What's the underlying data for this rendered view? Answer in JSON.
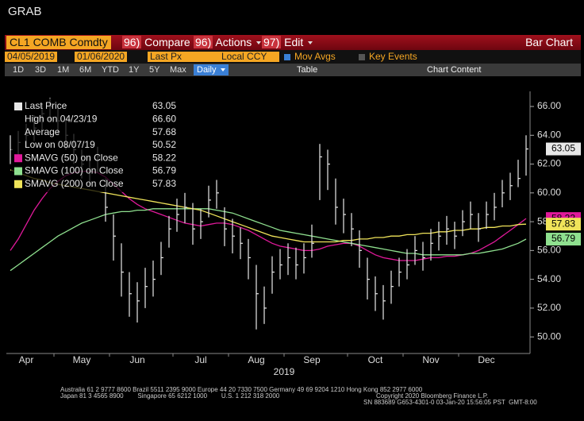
{
  "header": {
    "title": "GRAB"
  },
  "toolbar": {
    "security": "CL1 COMB Comdty",
    "menus": [
      {
        "code": "96)",
        "label": "Compare"
      },
      {
        "code": "96)",
        "label": "Actions"
      },
      {
        "code": "97)",
        "label": "Edit"
      }
    ],
    "view": "Bar Chart"
  },
  "settings": {
    "start": "04/05/2019",
    "end": "01/06/2020",
    "field": "Last Px",
    "currency": "Local CCY",
    "options": [
      "Mov Avgs",
      "Key Events"
    ]
  },
  "periods": [
    "1D",
    "3D",
    "1M",
    "6M",
    "YTD",
    "1Y",
    "5Y",
    "Max"
  ],
  "frequency": "Daily",
  "tabs": [
    "Table",
    "Chart Content"
  ],
  "chart_data": {
    "type": "hlc",
    "x_label": "2019",
    "categories": [
      null,
      null,
      "Apr",
      null,
      null,
      null,
      null,
      null,
      null,
      "May",
      null,
      null,
      null,
      null,
      null,
      null,
      "Jun",
      null,
      null,
      null,
      null,
      null,
      null,
      null,
      "Jul",
      null,
      null,
      null,
      null,
      null,
      null,
      "Aug",
      null,
      null,
      null,
      null,
      null,
      null,
      "Sep",
      null,
      null,
      null,
      null,
      null,
      null,
      null,
      "Oct",
      null,
      null,
      null,
      null,
      null,
      null,
      "Nov",
      null,
      null,
      null,
      null,
      null,
      null,
      "Dec",
      null,
      null,
      null,
      null,
      null
    ],
    "series": [
      {
        "name": "Last Price",
        "color": "#e8e8e8",
        "legend_value": "63.05",
        "values": [
          63.0,
          63.5,
          64.0,
          64.5,
          65.5,
          66.0,
          65.0,
          64.0,
          63.0,
          62.0,
          61.5,
          62.5,
          59.0,
          57.0,
          54.5,
          53.0,
          52.5,
          53.5,
          54.0,
          55.5,
          57.5,
          58.5,
          59.0,
          57.5,
          58.0,
          59.5,
          60.0,
          57.5,
          57.0,
          56.5,
          55.5,
          53.0,
          52.0,
          54.5,
          55.0,
          55.5,
          55.0,
          55.5,
          56.5,
          62.5,
          62.0,
          59.0,
          58.5,
          57.5,
          56.0,
          54.0,
          53.0,
          52.5,
          53.5,
          54.5,
          55.0,
          56.0,
          55.5,
          56.5,
          57.0,
          57.5,
          57.0,
          58.0,
          58.5,
          57.5,
          58.5,
          59.0,
          60.0,
          60.5,
          61.0,
          63.05
        ],
        "high": [
          64.0,
          64.3,
          64.8,
          65.4,
          66.2,
          66.6,
          66.0,
          65.0,
          64.1,
          63.0,
          62.6,
          63.2,
          61.0,
          58.5,
          56.5,
          54.5,
          53.8,
          54.8,
          55.3,
          56.6,
          58.4,
          59.6,
          60.0,
          59.3,
          58.9,
          60.5,
          60.9,
          59.0,
          58.2,
          57.6,
          56.8,
          55.0,
          53.5,
          55.6,
          56.1,
          56.5,
          56.2,
          56.5,
          57.8,
          63.4,
          63.0,
          61.0,
          59.6,
          58.6,
          57.4,
          55.5,
          54.2,
          53.6,
          54.6,
          55.5,
          56.1,
          57.0,
          56.6,
          57.5,
          58.0,
          58.4,
          58.0,
          58.8,
          59.4,
          58.6,
          59.4,
          60.0,
          60.9,
          61.4,
          62.3,
          64.0
        ],
        "low": [
          62.0,
          62.6,
          63.1,
          63.6,
          64.4,
          65.0,
          64.0,
          63.0,
          62.0,
          61.0,
          60.5,
          61.4,
          58.0,
          55.3,
          52.8,
          51.4,
          51.0,
          52.0,
          52.8,
          54.3,
          56.2,
          57.3,
          57.9,
          56.4,
          56.8,
          58.3,
          58.9,
          56.3,
          55.8,
          55.4,
          54.0,
          50.52,
          50.9,
          53.0,
          54.0,
          54.3,
          54.0,
          54.4,
          55.5,
          59.5,
          60.2,
          57.8,
          57.2,
          56.3,
          54.8,
          52.6,
          51.8,
          51.2,
          52.3,
          53.5,
          54.0,
          55.0,
          54.6,
          55.3,
          56.0,
          56.4,
          56.1,
          57.0,
          57.5,
          56.6,
          57.5,
          58.1,
          59.0,
          59.5,
          60.4,
          61.2
        ]
      },
      {
        "name": "SMAVG (50)  on Close",
        "color": "#e0199a",
        "legend_value": "58.22",
        "values": [
          56.0,
          56.8,
          57.8,
          58.8,
          59.6,
          60.3,
          60.8,
          61.2,
          61.4,
          61.5,
          61.5,
          61.4,
          61.1,
          60.6,
          60.1,
          59.6,
          59.2,
          58.9,
          58.7,
          58.5,
          58.3,
          58.1,
          57.9,
          57.8,
          57.7,
          57.8,
          57.9,
          57.9,
          57.8,
          57.6,
          57.4,
          57.1,
          56.8,
          56.5,
          56.3,
          56.2,
          56.1,
          56.0,
          56.0,
          56.1,
          56.3,
          56.4,
          56.5,
          56.5,
          56.3,
          56.0,
          55.7,
          55.5,
          55.4,
          55.3,
          55.3,
          55.3,
          55.4,
          55.5,
          55.5,
          55.6,
          55.6,
          55.7,
          55.8,
          56.0,
          56.3,
          56.6,
          57.0,
          57.4,
          57.8,
          58.22
        ]
      },
      {
        "name": "SMAVG (100)  on Close",
        "color": "#8fe08f",
        "legend_value": "56.79",
        "values": [
          54.6,
          55.0,
          55.4,
          55.8,
          56.2,
          56.6,
          57.0,
          57.3,
          57.6,
          57.9,
          58.1,
          58.3,
          58.5,
          58.6,
          58.7,
          58.7,
          58.8,
          58.8,
          58.9,
          58.9,
          58.9,
          58.9,
          58.9,
          58.9,
          58.9,
          58.9,
          58.8,
          58.7,
          58.6,
          58.4,
          58.2,
          58.0,
          57.8,
          57.6,
          57.4,
          57.3,
          57.2,
          57.1,
          57.0,
          56.9,
          56.8,
          56.7,
          56.6,
          56.5,
          56.4,
          56.3,
          56.2,
          56.1,
          56.0,
          55.9,
          55.8,
          55.8,
          55.7,
          55.7,
          55.7,
          55.7,
          55.7,
          55.7,
          55.8,
          55.8,
          55.9,
          56.0,
          56.1,
          56.3,
          56.5,
          56.79
        ]
      },
      {
        "name": "SMAVG (200)  on Close",
        "color": "#f0e45a",
        "legend_value": "57.83",
        "values": [
          61.6,
          61.4,
          61.2,
          61.0,
          60.9,
          60.7,
          60.6,
          60.5,
          60.4,
          60.3,
          60.2,
          60.1,
          60.0,
          59.9,
          59.8,
          59.7,
          59.6,
          59.5,
          59.4,
          59.3,
          59.2,
          59.1,
          59.0,
          58.9,
          58.8,
          58.6,
          58.4,
          58.2,
          58.0,
          57.8,
          57.6,
          57.4,
          57.2,
          57.0,
          56.9,
          56.8,
          56.7,
          56.6,
          56.6,
          56.6,
          56.6,
          56.6,
          56.7,
          56.7,
          56.8,
          56.8,
          56.9,
          56.9,
          57.0,
          57.0,
          57.1,
          57.1,
          57.2,
          57.2,
          57.3,
          57.3,
          57.4,
          57.4,
          57.5,
          57.5,
          57.6,
          57.6,
          57.7,
          57.7,
          57.8,
          57.83
        ]
      }
    ],
    "stats": [
      {
        "label": "High on 04/23/19",
        "value": "66.60"
      },
      {
        "label": "Average",
        "value": "57.68"
      },
      {
        "label": "Low on 08/07/19",
        "value": "50.52"
      }
    ],
    "ylim": [
      48.85,
      67.05
    ],
    "yticks": [
      {
        "value": 50,
        "label": "50.00"
      },
      {
        "value": 52,
        "label": "52.00"
      },
      {
        "value": 54,
        "label": "54.00"
      },
      {
        "value": 56,
        "label": "56.00"
      },
      {
        "value": 58,
        "label": "58.00"
      },
      {
        "value": 60,
        "label": "60.00"
      },
      {
        "value": 62,
        "label": "62.00"
      },
      {
        "value": 64,
        "label": "64.00"
      },
      {
        "value": 66,
        "label": "66.00"
      }
    ],
    "grid": false
  },
  "footer": {
    "line1": "Australia 61 2 9777 8600 Brazil 5511 2395 9000 Europe 44 20 7330 7500 Germany 49 69 9204 1210 Hong Kong 852 2977 6000",
    "line2_left": "Japan 81 3 4565 8900        Singapore 65 6212 1000        U.S. 1 212 318 2000",
    "line2_right": "Copyright 2020 Bloomberg Finance L.P.",
    "line3": "SN 883689 G653-4301-0 03-Jan-20 15:56:05 PST  GMT-8:00"
  }
}
